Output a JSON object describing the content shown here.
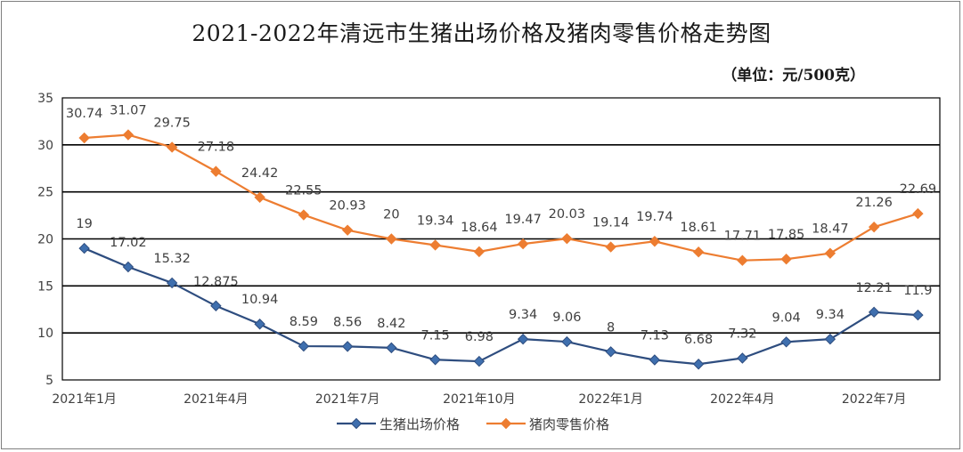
{
  "chart_data": {
    "type": "line",
    "title": "2021-2022年清远市生猪出场价格及猪肉零售价格走势图",
    "unit": "（单位：元/500克）",
    "ylim": [
      5,
      35
    ],
    "yticks": [
      5,
      10,
      15,
      20,
      25,
      30,
      35
    ],
    "grid": true,
    "legend_position": "bottom",
    "x_tick_labels": [
      {
        "index": 0,
        "label": "2021年1月"
      },
      {
        "index": 3,
        "label": "2021年4月"
      },
      {
        "index": 6,
        "label": "2021年7月"
      },
      {
        "index": 9,
        "label": "2021年10月"
      },
      {
        "index": 12,
        "label": "2022年1月"
      },
      {
        "index": 15,
        "label": "2022年4月"
      },
      {
        "index": 18,
        "label": "2022年7月"
      }
    ],
    "series": [
      {
        "name": "生猪出场价格",
        "color": "#2e4d7f",
        "marker": "diamond",
        "values": [
          19,
          17.02,
          15.32,
          12.875,
          10.94,
          8.59,
          8.56,
          8.42,
          7.15,
          6.98,
          9.34,
          9.06,
          8,
          7.13,
          6.68,
          7.32,
          9.04,
          9.34,
          12.21,
          11.9
        ],
        "labels": [
          "19",
          "17.02",
          "15.32",
          "12.875",
          "10.94",
          "8.59",
          "8.56",
          "8.42",
          "7.15",
          "6.98",
          "9.34",
          "9.06",
          "8",
          "7.13",
          "6.68",
          "7.32",
          "9.04",
          "9.34",
          "12.21",
          "11.9"
        ]
      },
      {
        "name": "猪肉零售价格",
        "color": "#ed7d31",
        "marker": "diamond",
        "values": [
          30.74,
          31.07,
          29.75,
          27.18,
          24.42,
          22.55,
          20.93,
          20,
          19.34,
          18.64,
          19.47,
          20.03,
          19.14,
          19.74,
          18.61,
          17.71,
          17.85,
          18.47,
          21.26,
          22.69
        ],
        "labels": [
          "30.74",
          "31.07",
          "29.75",
          "27.18",
          "24.42",
          "22.55",
          "20.93",
          "20",
          "19.34",
          "18.64",
          "19.47",
          "20.03",
          "19.14",
          "19.74",
          "18.61",
          "17.71",
          "17.85",
          "18.47",
          "21.26",
          "22.69"
        ]
      }
    ]
  }
}
